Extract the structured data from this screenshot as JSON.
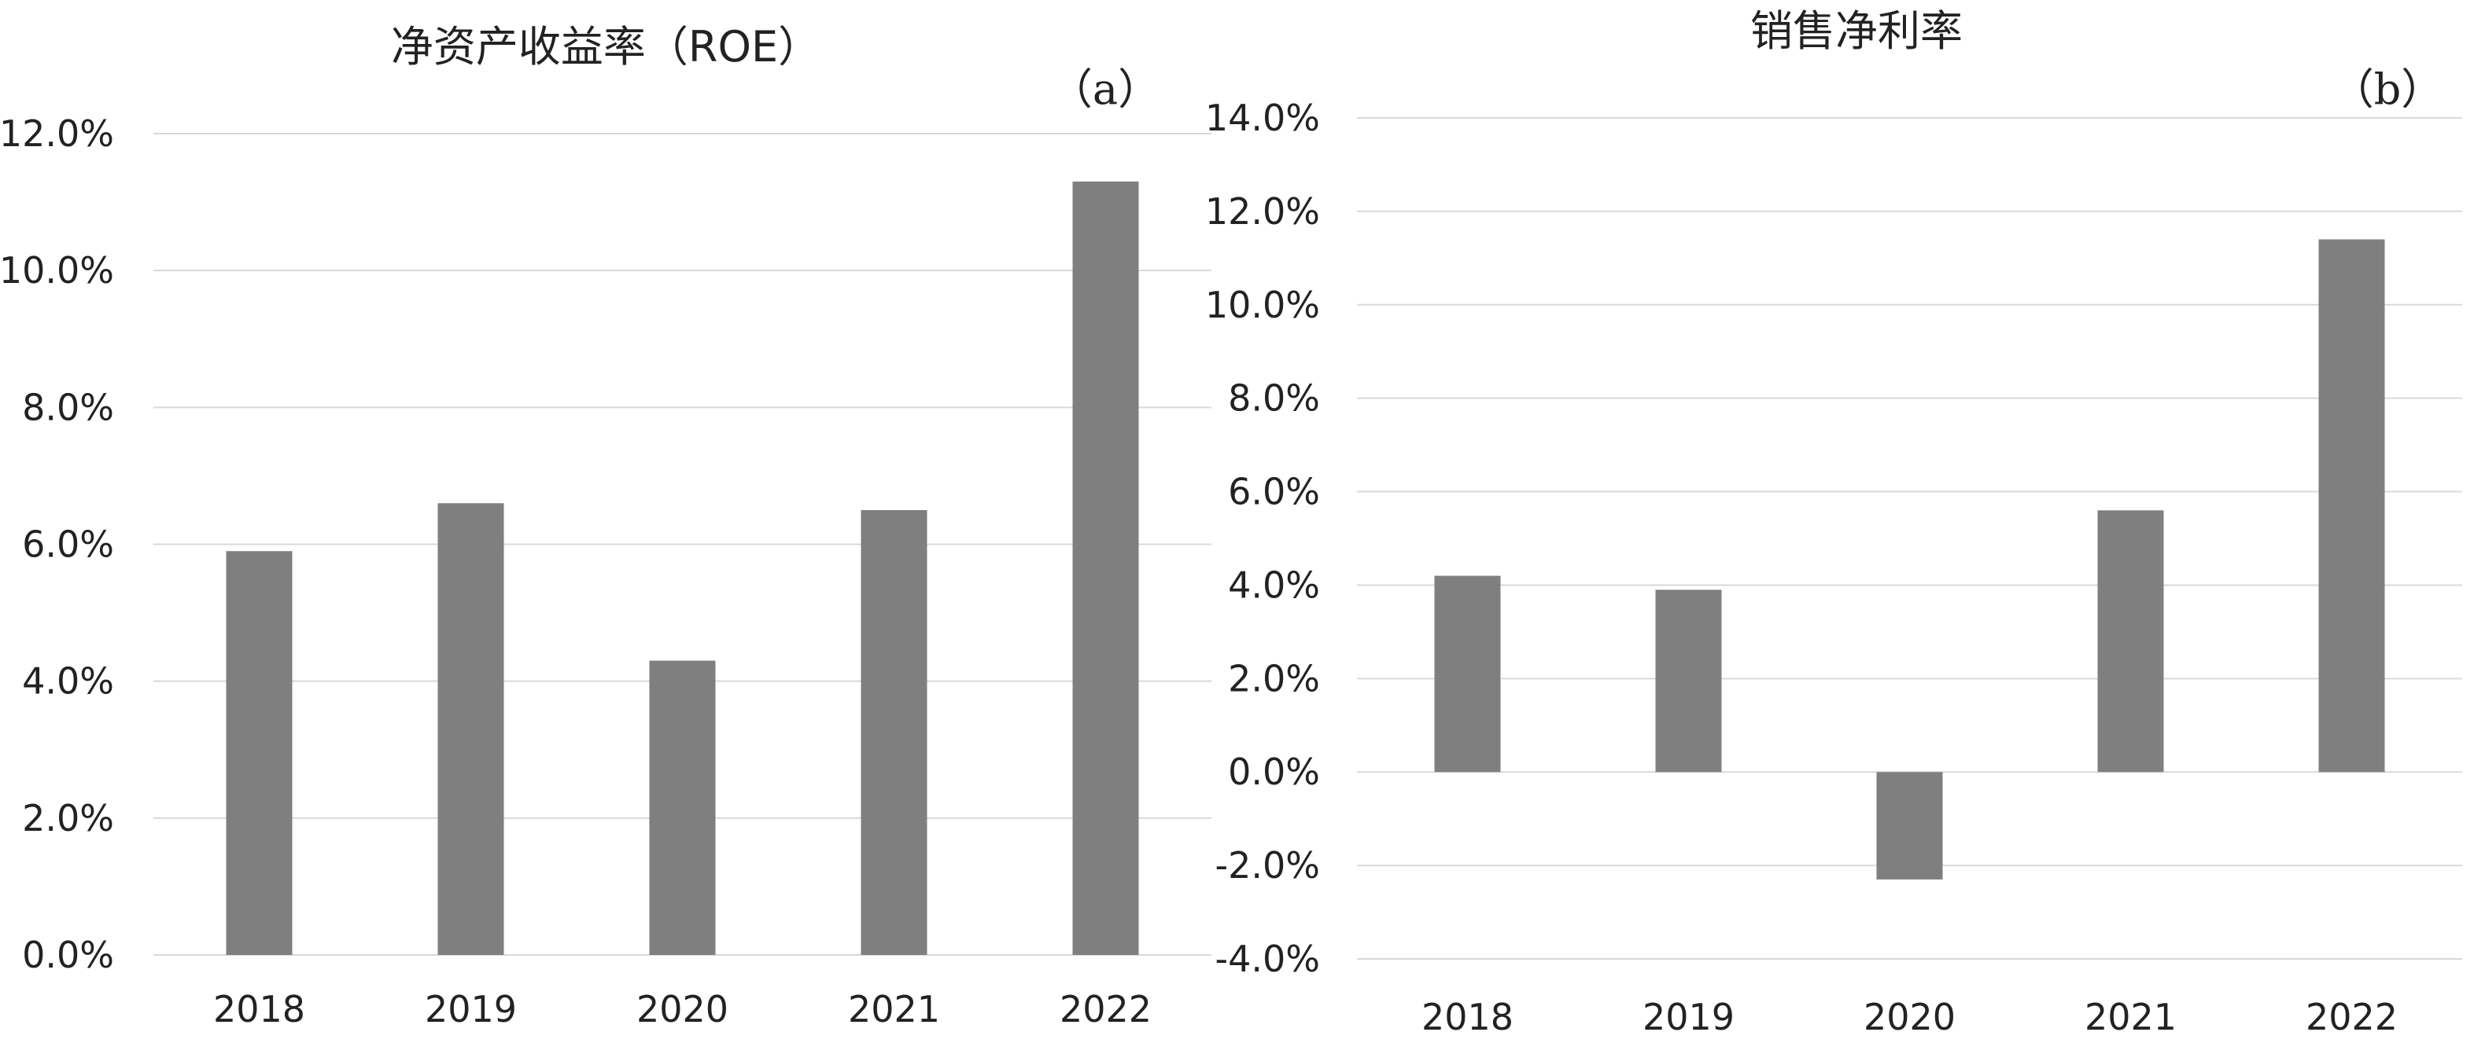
{
  "chart_data": [
    {
      "type": "bar",
      "title": "净资产收益率（ROE）",
      "panel_label": "（a）",
      "xlabel": "",
      "ylabel": "",
      "categories": [
        "2018",
        "2019",
        "2020",
        "2021",
        "2022"
      ],
      "values": [
        5.9,
        6.6,
        4.3,
        6.5,
        11.3
      ],
      "ylim": [
        0,
        12
      ],
      "yticks": [
        "0.0%",
        "2.0%",
        "4.0%",
        "6.0%",
        "8.0%",
        "10.0%",
        "12.0%"
      ],
      "grid": true,
      "bar_color": "#7f7f7f",
      "grid_color": "#d9d9d9"
    },
    {
      "type": "bar",
      "title": "销售净利率",
      "panel_label": "（b）",
      "xlabel": "",
      "ylabel": "",
      "categories": [
        "2018",
        "2019",
        "2020",
        "2021",
        "2022"
      ],
      "values": [
        4.2,
        3.9,
        -2.3,
        5.6,
        11.4
      ],
      "ylim": [
        -4,
        14
      ],
      "yticks": [
        "-4.0%",
        "-2.0%",
        "0.0%",
        "2.0%",
        "4.0%",
        "6.0%",
        "8.0%",
        "10.0%",
        "12.0%",
        "14.0%"
      ],
      "grid": true,
      "bar_color": "#7f7f7f",
      "grid_color": "#d9d9d9"
    }
  ]
}
